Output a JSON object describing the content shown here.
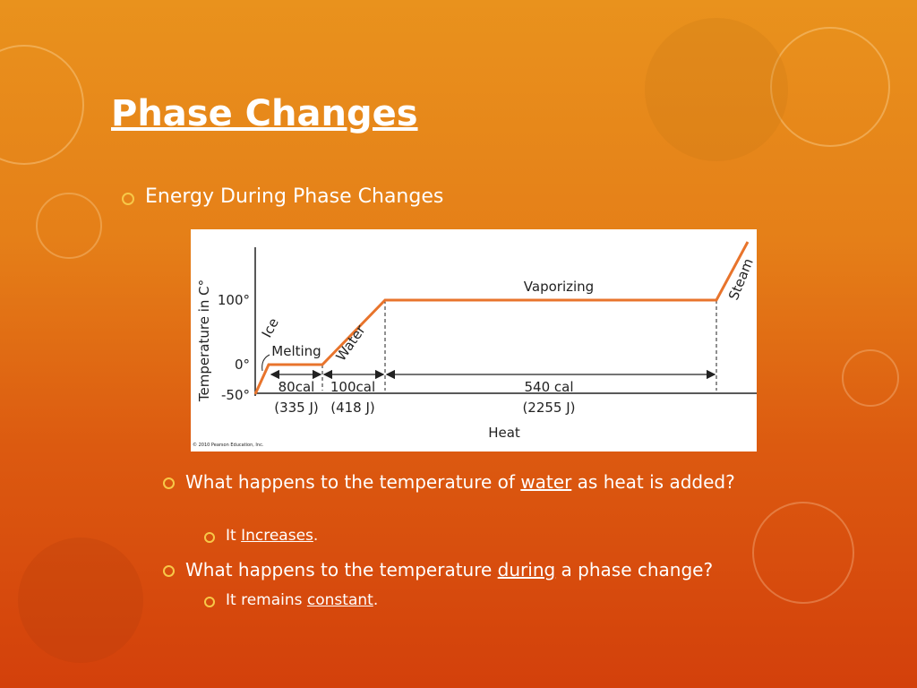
{
  "title": "Phase Changes",
  "bullets": [
    {
      "text": "Energy During Phase Changes"
    }
  ],
  "figure": {
    "y_axis_label": "Temperature in C°",
    "y_ticks": [
      "100°",
      "0°",
      "-50°"
    ],
    "x_axis_label": "Heat",
    "phases": [
      "Ice",
      "Melting",
      "Water",
      "Vaporizing",
      "Steam"
    ],
    "segments": [
      {
        "amount": "80cal",
        "joules": "(335 J)"
      },
      {
        "amount": "100cal",
        "joules": "(418 J)"
      },
      {
        "amount": "540 cal",
        "joules": "(2255 J)"
      }
    ],
    "copyright": "© 2010 Pearson Education, Inc."
  },
  "questions": [
    {
      "parts": [
        {
          "text": "What happens to the temperature of ",
          "underline": false
        },
        {
          "text": "water",
          "underline": true
        },
        {
          "text": " as heat is added?",
          "underline": false
        }
      ],
      "answer": [
        {
          "text": "It ",
          "underline": false
        },
        {
          "text": "Increases",
          "underline": true
        },
        {
          "text": ".",
          "underline": false
        }
      ]
    },
    {
      "parts": [
        {
          "text": "What happens to the temperature ",
          "underline": false
        },
        {
          "text": "during",
          "underline": true
        },
        {
          "text": " a phase change?",
          "underline": false
        }
      ],
      "answer": [
        {
          "text": "It remains ",
          "underline": false
        },
        {
          "text": "constant",
          "underline": true
        },
        {
          "text": ".",
          "underline": false
        }
      ]
    }
  ]
}
